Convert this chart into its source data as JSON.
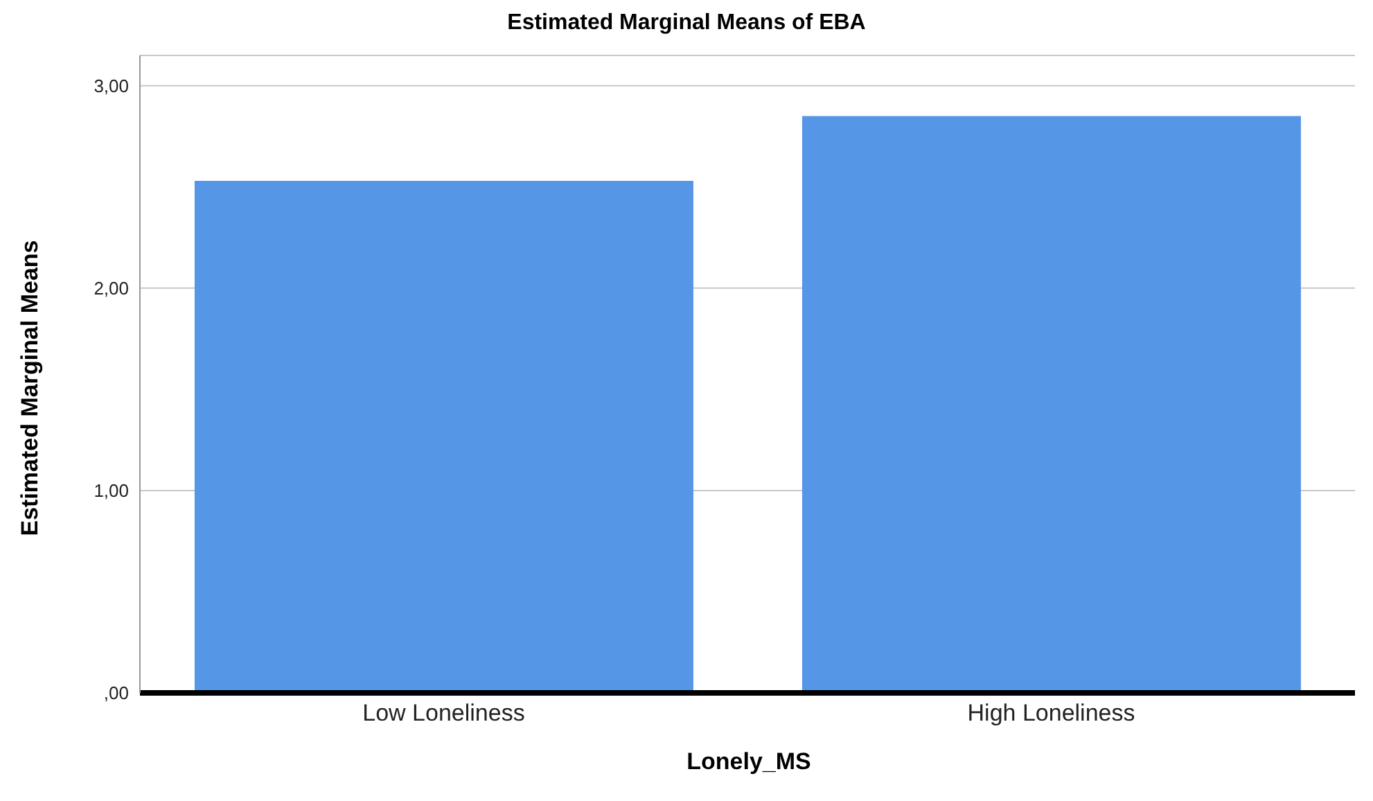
{
  "chart_data": {
    "type": "bar",
    "title": "Estimated Marginal Means of EBA",
    "xlabel": "Lonely_MS",
    "ylabel": "Estimated Marginal Means",
    "categories": [
      "Low Loneliness",
      "High Loneliness"
    ],
    "series": [
      {
        "color": "#5596e6",
        "values": [
          2.53,
          2.85
        ]
      }
    ],
    "ylim": [
      0,
      3.15
    ],
    "yticks": [
      {
        "value": 0,
        "label": ",00"
      },
      {
        "value": 1,
        "label": "1,00"
      },
      {
        "value": 2,
        "label": "2,00"
      },
      {
        "value": 3,
        "label": "3,00"
      }
    ],
    "grid": "y",
    "legend": false
  }
}
